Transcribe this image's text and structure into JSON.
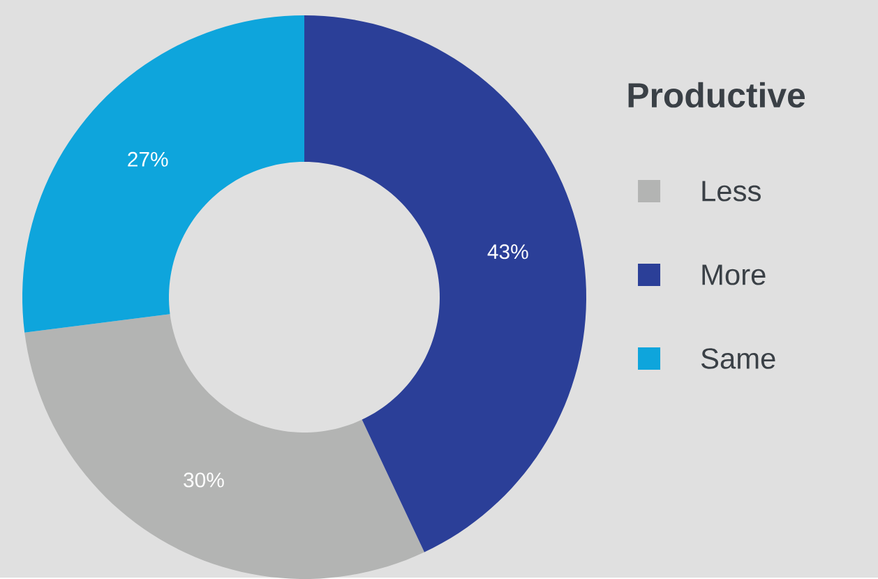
{
  "chart_data": {
    "type": "donut",
    "legend_title": "Productive",
    "categories": [
      "Less",
      "More",
      "Same"
    ],
    "values": [
      30,
      43,
      27
    ],
    "colors": [
      "#b3b4b3",
      "#2b3f98",
      "#0ea5dc"
    ],
    "value_labels": [
      "30%",
      "43%",
      "27%"
    ],
    "legend": "right"
  }
}
